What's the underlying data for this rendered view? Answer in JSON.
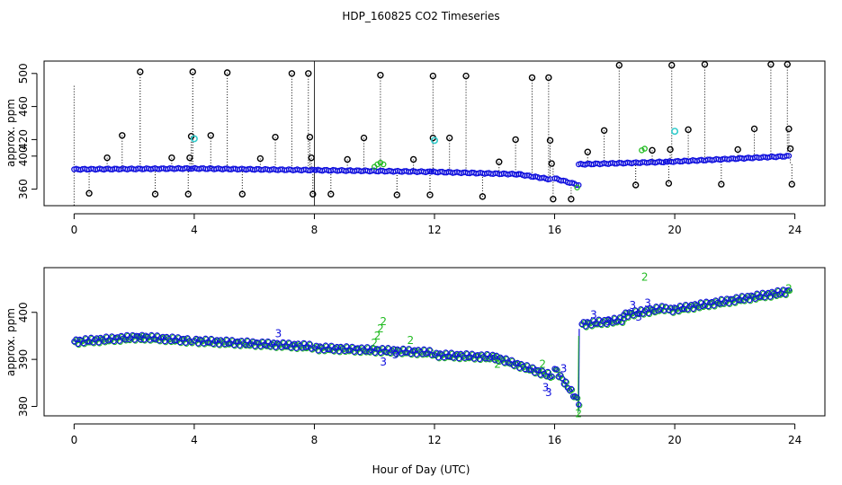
{
  "chart_data": [
    {
      "type": "scatter",
      "title": "HDP_160825  CO2 Timeseries",
      "xlabel": "",
      "ylabel": "approx. ppm",
      "xlim": [
        -1,
        25
      ],
      "ylim": [
        340,
        515
      ],
      "xticks": [
        0,
        4,
        8,
        12,
        16,
        20,
        24
      ],
      "xtick_labels": [
        "0",
        "4",
        "8",
        "12",
        "16",
        "20",
        "24"
      ],
      "yticks": [
        360,
        400,
        420,
        460,
        500
      ],
      "ytick_labels": [
        "360",
        "400",
        "420",
        "460",
        "500"
      ],
      "baseline_segments": [
        {
          "x_start": 0.0,
          "x_end": 3.9,
          "y_start": 384,
          "y_end": 385
        },
        {
          "x_start": 3.95,
          "x_end": 8.0,
          "y_start": 385,
          "y_end": 383
        },
        {
          "x_start": 8.05,
          "x_end": 11.85,
          "y_start": 383,
          "y_end": 381
        },
        {
          "x_start": 11.9,
          "x_end": 14.8,
          "y_start": 381,
          "y_end": 378
        },
        {
          "x_start": 14.8,
          "x_end": 15.85,
          "y_start": 378,
          "y_end": 372
        },
        {
          "x_start": 16.0,
          "x_end": 16.8,
          "y_start": 373,
          "y_end": 365
        },
        {
          "x_start": 16.8,
          "x_end": 19.7,
          "y_start": 390,
          "y_end": 393
        },
        {
          "x_start": 19.75,
          "x_end": 23.8,
          "y_start": 393,
          "y_end": 400
        }
      ],
      "outliers": [
        {
          "x": 0.5,
          "y": 355
        },
        {
          "x": 1.1,
          "y": 398
        },
        {
          "x": 1.6,
          "y": 425
        },
        {
          "x": 2.2,
          "y": 502
        },
        {
          "x": 2.7,
          "y": 354
        },
        {
          "x": 3.25,
          "y": 398
        },
        {
          "x": 3.8,
          "y": 354
        },
        {
          "x": 3.85,
          "y": 398
        },
        {
          "x": 3.9,
          "y": 424
        },
        {
          "x": 3.95,
          "y": 502
        },
        {
          "x": 4.55,
          "y": 425
        },
        {
          "x": 5.1,
          "y": 501
        },
        {
          "x": 5.6,
          "y": 354
        },
        {
          "x": 6.2,
          "y": 397
        },
        {
          "x": 6.7,
          "y": 423
        },
        {
          "x": 7.25,
          "y": 500
        },
        {
          "x": 7.8,
          "y": 500
        },
        {
          "x": 7.85,
          "y": 423
        },
        {
          "x": 7.9,
          "y": 398
        },
        {
          "x": 7.95,
          "y": 354
        },
        {
          "x": 8.55,
          "y": 354
        },
        {
          "x": 9.1,
          "y": 396
        },
        {
          "x": 9.65,
          "y": 422
        },
        {
          "x": 10.2,
          "y": 498
        },
        {
          "x": 10.75,
          "y": 353
        },
        {
          "x": 11.3,
          "y": 396
        },
        {
          "x": 11.85,
          "y": 353
        },
        {
          "x": 11.95,
          "y": 422
        },
        {
          "x": 11.95,
          "y": 497
        },
        {
          "x": 12.5,
          "y": 422
        },
        {
          "x": 13.05,
          "y": 497
        },
        {
          "x": 13.6,
          "y": 351
        },
        {
          "x": 14.15,
          "y": 393
        },
        {
          "x": 14.7,
          "y": 420
        },
        {
          "x": 15.25,
          "y": 495
        },
        {
          "x": 15.8,
          "y": 495
        },
        {
          "x": 15.85,
          "y": 419
        },
        {
          "x": 15.9,
          "y": 391
        },
        {
          "x": 15.95,
          "y": 348
        },
        {
          "x": 16.55,
          "y": 348
        },
        {
          "x": 17.1,
          "y": 405
        },
        {
          "x": 17.65,
          "y": 431
        },
        {
          "x": 18.15,
          "y": 510
        },
        {
          "x": 18.7,
          "y": 365
        },
        {
          "x": 19.25,
          "y": 407
        },
        {
          "x": 19.8,
          "y": 367
        },
        {
          "x": 19.85,
          "y": 408
        },
        {
          "x": 19.9,
          "y": 510
        },
        {
          "x": 20.45,
          "y": 432
        },
        {
          "x": 21.0,
          "y": 511
        },
        {
          "x": 21.55,
          "y": 366
        },
        {
          "x": 22.1,
          "y": 408
        },
        {
          "x": 22.65,
          "y": 433
        },
        {
          "x": 23.2,
          "y": 511
        },
        {
          "x": 23.75,
          "y": 511
        },
        {
          "x": 23.8,
          "y": 433
        },
        {
          "x": 23.85,
          "y": 409
        },
        {
          "x": 23.9,
          "y": 366
        }
      ],
      "cyan_points": [
        {
          "x": 4.0,
          "y": 421
        },
        {
          "x": 12.0,
          "y": 419
        },
        {
          "x": 20.0,
          "y": 430
        }
      ],
      "green_points": [
        {
          "x": 10.0,
          "y": 387
        },
        {
          "x": 10.1,
          "y": 390
        },
        {
          "x": 10.2,
          "y": 392
        },
        {
          "x": 10.3,
          "y": 390
        },
        {
          "x": 16.75,
          "y": 362
        },
        {
          "x": 18.9,
          "y": 407
        },
        {
          "x": 19.0,
          "y": 409
        }
      ]
    },
    {
      "type": "scatter",
      "title": "",
      "xlabel": "Hour of Day (UTC)",
      "ylabel": "approx. ppm",
      "xlim": [
        -1,
        25
      ],
      "ylim": [
        378,
        409.5
      ],
      "xticks": [
        0,
        4,
        8,
        12,
        16,
        20,
        24
      ],
      "xtick_labels": [
        "0",
        "4",
        "8",
        "12",
        "16",
        "20",
        "24"
      ],
      "yticks": [
        380,
        390,
        400
      ],
      "ytick_labels": [
        "380",
        "390",
        "400"
      ],
      "trend_segments": [
        {
          "x_start": 0.0,
          "x_end": 2.2,
          "y_start": 393.8,
          "y_end": 394.8
        },
        {
          "x_start": 2.2,
          "x_end": 3.9,
          "y_start": 394.8,
          "y_end": 394.0
        },
        {
          "x_start": 4.0,
          "x_end": 7.9,
          "y_start": 394.0,
          "y_end": 392.8
        },
        {
          "x_start": 8.0,
          "x_end": 11.9,
          "y_start": 392.5,
          "y_end": 391.5
        },
        {
          "x_start": 12.0,
          "x_end": 14.0,
          "y_start": 391.0,
          "y_end": 390.5
        },
        {
          "x_start": 14.0,
          "x_end": 15.9,
          "y_start": 390.5,
          "y_end": 386.5
        },
        {
          "x_start": 16.0,
          "x_end": 16.8,
          "y_start": 388.0,
          "y_end": 381.0
        },
        {
          "x_start": 16.9,
          "x_end": 18.3,
          "y_start": 397.5,
          "y_end": 398.5
        },
        {
          "x_start": 18.3,
          "x_end": 19.7,
          "y_start": 399.5,
          "y_end": 401.0
        },
        {
          "x_start": 19.8,
          "x_end": 23.8,
          "y_start": 400.5,
          "y_end": 404.5
        }
      ],
      "labels_3": [
        {
          "x": 6.8,
          "y": 395.5
        },
        {
          "x": 10.3,
          "y": 389.5
        },
        {
          "x": 10.7,
          "y": 391.0
        },
        {
          "x": 15.7,
          "y": 384.0
        },
        {
          "x": 15.8,
          "y": 383.0
        },
        {
          "x": 16.3,
          "y": 388.0
        },
        {
          "x": 17.3,
          "y": 399.5
        },
        {
          "x": 17.8,
          "y": 398.0
        },
        {
          "x": 18.6,
          "y": 401.5
        },
        {
          "x": 18.8,
          "y": 399.0
        },
        {
          "x": 19.1,
          "y": 402.0
        }
      ],
      "labels_2": [
        {
          "x": 10.0,
          "y": 393.5
        },
        {
          "x": 10.1,
          "y": 395.0
        },
        {
          "x": 10.2,
          "y": 396.5
        },
        {
          "x": 10.3,
          "y": 398.0
        },
        {
          "x": 11.2,
          "y": 394.0
        },
        {
          "x": 14.1,
          "y": 389.0
        },
        {
          "x": 15.6,
          "y": 389.0
        },
        {
          "x": 16.8,
          "y": 378.5
        },
        {
          "x": 19.0,
          "y": 407.5
        },
        {
          "x": 23.8,
          "y": 405.0
        }
      ]
    }
  ]
}
